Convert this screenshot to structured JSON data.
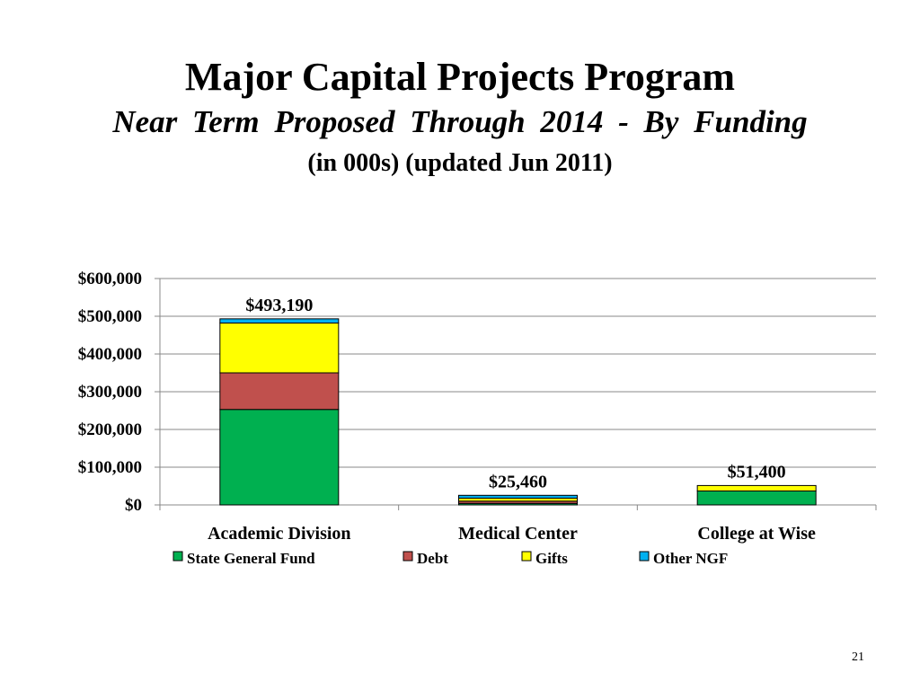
{
  "slide": {
    "title": "Major Capital Projects Program",
    "subtitle": "Near  Term  Proposed  Through  2014 - By  Funding",
    "subtitle2": "(in 000s) (updated Jun 2011)",
    "page_number": "21"
  },
  "colors": {
    "State General Fund": "#00B050",
    "Debt": "#C0504D",
    "Gifts": "#FFFF00",
    "Other NGF": "#00B0F0"
  },
  "chart_data": {
    "type": "bar",
    "stacked": true,
    "categories": [
      "Academic Division",
      "Medical Center",
      "College at Wise"
    ],
    "series": [
      {
        "name": "State General Fund",
        "values": [
          253000,
          4000,
          37000
        ]
      },
      {
        "name": "Debt",
        "values": [
          97000,
          6000,
          0
        ]
      },
      {
        "name": "Gifts",
        "values": [
          132000,
          8000,
          14400
        ]
      },
      {
        "name": "Other NGF",
        "values": [
          11190,
          7460,
          0
        ]
      }
    ],
    "totals": [
      493190,
      25460,
      51400
    ],
    "total_labels": [
      "$493,190",
      "$25,460",
      "$51,400"
    ],
    "yticks": [
      "$0",
      "$100,000",
      "$200,000",
      "$300,000",
      "$400,000",
      "$500,000",
      "$600,000"
    ],
    "ylim": [
      0,
      600000
    ],
    "grid": true,
    "legend_position": "bottom"
  }
}
